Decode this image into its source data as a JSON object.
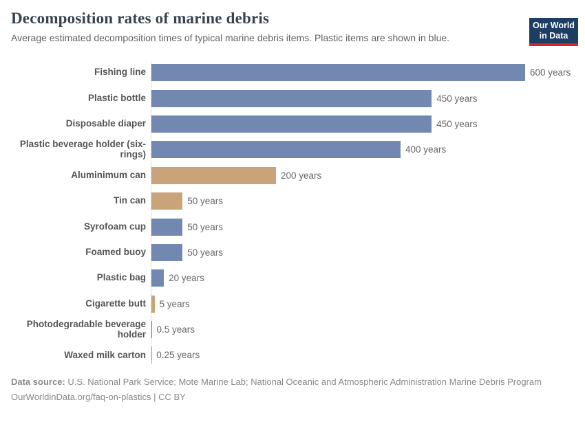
{
  "header": {
    "title": "Decomposition rates of marine debris",
    "subtitle": "Average estimated decomposition times of typical marine debris items. Plastic items are shown in blue.",
    "logo": {
      "line1": "Our World",
      "line2": "in Data"
    }
  },
  "colors": {
    "plastic_blue": "#7288b0",
    "non_plastic_tan": "#c9a47a",
    "logo_navy": "#1d3d63",
    "logo_red": "#cf2630",
    "axis_line": "#dcdcdc"
  },
  "chart_data": {
    "type": "bar",
    "orientation": "horizontal",
    "unit": "years",
    "xlim": [
      0,
      663
    ],
    "grid": false,
    "legend": "none",
    "title": "Decomposition rates of marine debris",
    "subtitle": "Average estimated decomposition times of typical marine debris items. Plastic items are shown in blue.",
    "categories": [
      "Fishing line",
      "Plastic bottle",
      "Disposable diaper",
      "Plastic beverage holder (six-rings)",
      "Aluminimum can",
      "Tin can",
      "Syrofoam cup",
      "Foamed buoy",
      "Plastic bag",
      "Cigarette butt",
      "Photodegradable beverage holder",
      "Waxed milk carton"
    ],
    "values": [
      600,
      450,
      450,
      400,
      200,
      50,
      50,
      50,
      20,
      5,
      0.5,
      0.25
    ],
    "items": [
      {
        "label": "Fishing line",
        "value": 600,
        "value_label": "600 years",
        "plastic": true
      },
      {
        "label": "Plastic bottle",
        "value": 450,
        "value_label": "450 years",
        "plastic": true
      },
      {
        "label": "Disposable diaper",
        "value": 450,
        "value_label": "450 years",
        "plastic": true
      },
      {
        "label": "Plastic beverage holder (six-rings)",
        "value": 400,
        "value_label": "400 years",
        "plastic": true
      },
      {
        "label": "Aluminimum can",
        "value": 200,
        "value_label": "200 years",
        "plastic": false
      },
      {
        "label": "Tin can",
        "value": 50,
        "value_label": "50 years",
        "plastic": false
      },
      {
        "label": "Syrofoam cup",
        "value": 50,
        "value_label": "50 years",
        "plastic": true
      },
      {
        "label": "Foamed buoy",
        "value": 50,
        "value_label": "50 years",
        "plastic": true
      },
      {
        "label": "Plastic bag",
        "value": 20,
        "value_label": "20 years",
        "plastic": true
      },
      {
        "label": "Cigarette butt",
        "value": 5,
        "value_label": "5 years",
        "plastic": false
      },
      {
        "label": "Photodegradable beverage holder",
        "value": 0.5,
        "value_label": "0.5 years",
        "plastic": true
      },
      {
        "label": "Waxed milk carton",
        "value": 0.25,
        "value_label": "0.25 years",
        "plastic": false
      }
    ]
  },
  "footer": {
    "source_label": "Data source:",
    "source_text": " U.S. National Park Service; Mote Marine Lab; National Oceanic and Atmospheric Administration Marine Debris Program",
    "link_line": "OurWorldinData.org/faq-on-plastics | CC BY"
  }
}
